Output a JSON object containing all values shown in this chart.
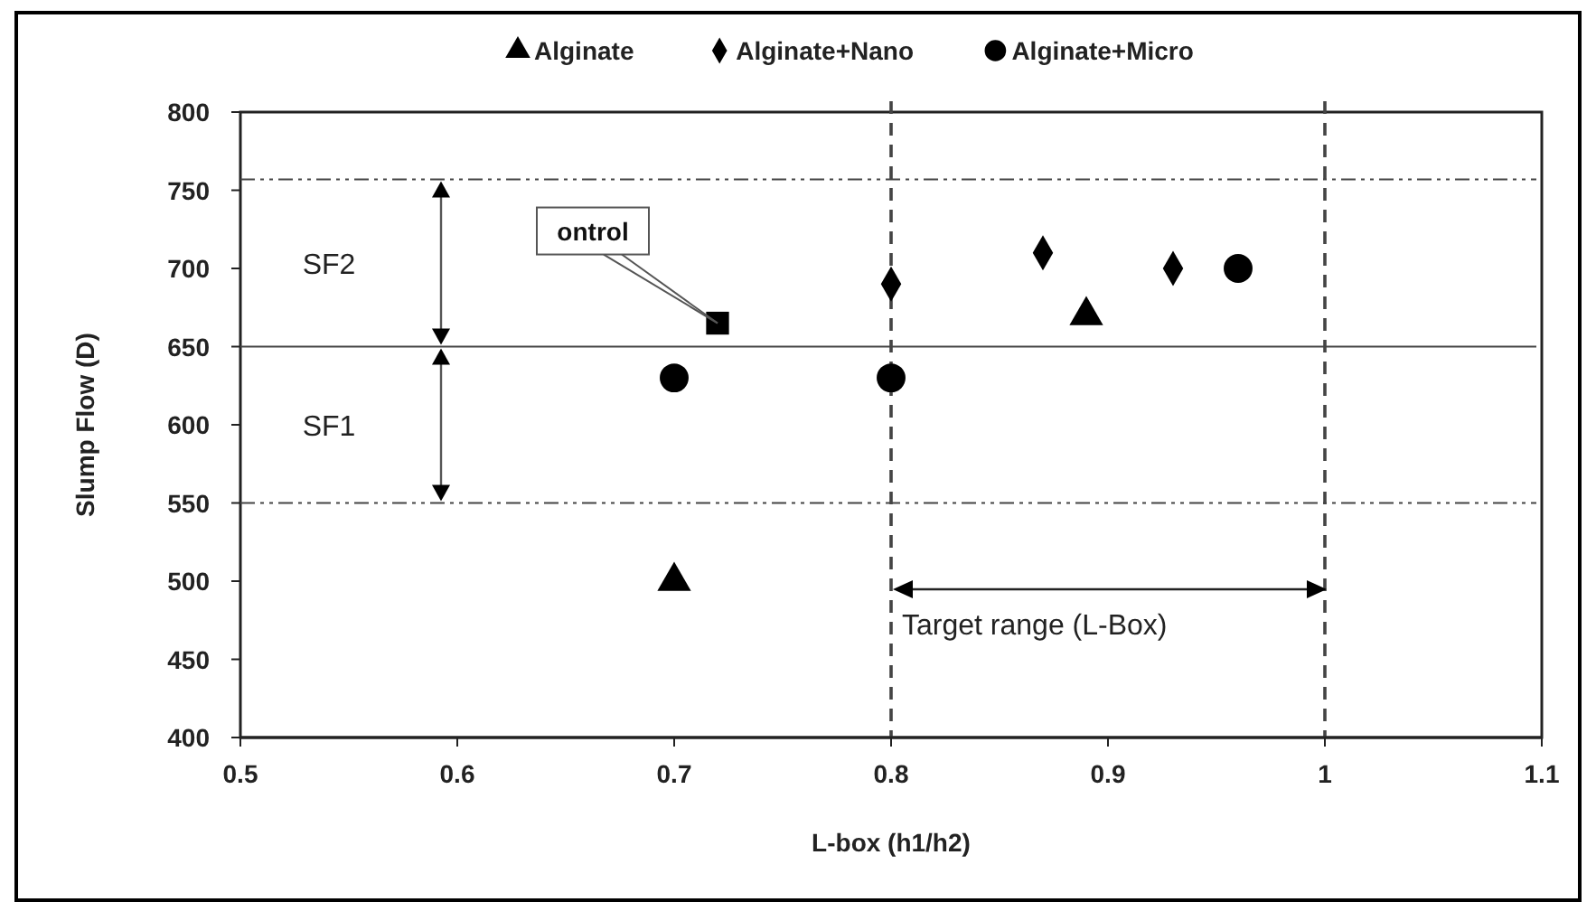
{
  "chart_data": {
    "type": "scatter",
    "xlabel": "L-box (h1/h2)",
    "ylabel": "Slump Flow (D)",
    "xlim": [
      0.5,
      1.1
    ],
    "xticks": [
      0.5,
      0.6,
      0.7,
      0.8,
      0.9,
      1,
      1.1
    ],
    "ylim": [
      400,
      800
    ],
    "yticks": [
      400,
      450,
      500,
      550,
      600,
      650,
      700,
      750,
      800
    ],
    "grid": false,
    "legend": "top",
    "series": [
      {
        "name": "Alginate",
        "color": "#000000",
        "marker": "triangle",
        "x": [
          0.7,
          0.89
        ],
        "values": [
          500,
          670
        ]
      },
      {
        "name": "Alginate+Nano",
        "color": "#000000",
        "marker": "diamond",
        "x": [
          0.8,
          0.87,
          0.93
        ],
        "values": [
          690,
          710,
          700
        ]
      },
      {
        "name": "Alginate+Micro",
        "color": "#000000",
        "marker": "circle",
        "x": [
          0.7,
          0.8,
          0.96
        ],
        "values": [
          630,
          630,
          700
        ]
      },
      {
        "color": "#000000",
        "marker": "square",
        "x": [
          0.72
        ],
        "values": [
          665
        ]
      }
    ],
    "ref_lines": [
      {
        "axis": "y",
        "value": 757,
        "line_style": "dashdot"
      },
      {
        "axis": "y",
        "value": 650,
        "line_style": "solid"
      },
      {
        "axis": "y",
        "value": 550,
        "line_style": "dashdot"
      },
      {
        "axis": "x",
        "value": 0.8,
        "line_style": "dashed"
      },
      {
        "axis": "x",
        "value": 1,
        "line_style": "dashed"
      }
    ],
    "annotations": [
      {
        "text": "ontrol",
        "x": 0.72,
        "y": 665
      },
      "SF2",
      "SF1",
      "Target range (L-Box)"
    ]
  }
}
